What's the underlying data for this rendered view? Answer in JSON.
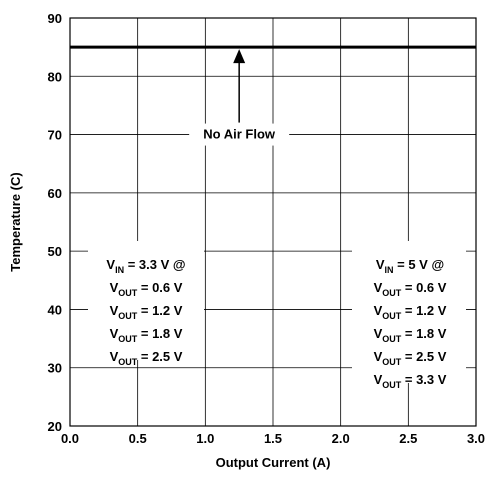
{
  "chart_data": {
    "type": "line",
    "xlabel": "Output Current (A)",
    "ylabel": "Temperature (C)",
    "xlim": [
      0.0,
      3.0
    ],
    "ylim": [
      20,
      90
    ],
    "x_ticks": [
      "0.0",
      "0.5",
      "1.0",
      "1.5",
      "2.0",
      "2.5",
      "3.0"
    ],
    "y_ticks": [
      "20",
      "30",
      "40",
      "50",
      "60",
      "70",
      "80",
      "90"
    ],
    "grid": true,
    "series": [
      {
        "x": [
          0.0,
          3.0
        ],
        "y": [
          85,
          85
        ]
      }
    ],
    "annotations": {
      "arrow_label": "No Air Flow",
      "left_box": [
        {
          "main": "V",
          "sub": "IN",
          "rest": " = 3.3 V @"
        },
        {
          "main": "V",
          "sub": "OUT",
          "rest": " = 0.6 V"
        },
        {
          "main": "V",
          "sub": "OUT",
          "rest": " = 1.2 V"
        },
        {
          "main": "V",
          "sub": "OUT",
          "rest": " = 1.8 V"
        },
        {
          "main": "V",
          "sub": "OUT",
          "rest": " = 2.5 V"
        }
      ],
      "right_box": [
        {
          "main": "V",
          "sub": "IN",
          "rest": " = 5 V @"
        },
        {
          "main": "V",
          "sub": "OUT",
          "rest": " = 0.6 V"
        },
        {
          "main": "V",
          "sub": "OUT",
          "rest": " = 1.2 V"
        },
        {
          "main": "V",
          "sub": "OUT",
          "rest": " = 1.8 V"
        },
        {
          "main": "V",
          "sub": "OUT",
          "rest": " = 2.5 V"
        },
        {
          "main": "V",
          "sub": "OUT",
          "rest": " = 3.3 V"
        }
      ]
    },
    "colors": {
      "line": "#000000",
      "grid": "#000000",
      "background": "#ffffff"
    }
  }
}
